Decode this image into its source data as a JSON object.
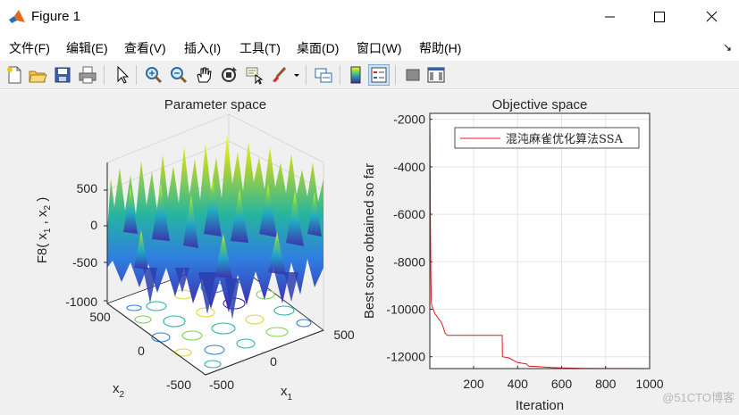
{
  "window": {
    "title": "Figure 1",
    "icon": "matlab-icon",
    "minimize_icon": "minimize-icon",
    "maximize_icon": "maximize-icon",
    "close_icon": "close-icon"
  },
  "menu": {
    "items": [
      "文件(F)",
      "编辑(E)",
      "查看(V)",
      "插入(I)",
      "工具(T)",
      "桌面(D)",
      "窗口(W)",
      "帮助(H)"
    ],
    "arrow": "↘"
  },
  "toolbar": {
    "icons": [
      "new-figure-icon",
      "open-file-icon",
      "save-icon",
      "print-icon",
      "pointer-icon",
      "zoom-in-icon",
      "zoom-out-icon",
      "pan-icon",
      "rotate-3d-icon",
      "data-cursor-icon",
      "brush-icon",
      "link-plot-icon",
      "colorbar-icon",
      "legend-icon",
      "hide-plot-tools-icon",
      "show-plot-tools-icon"
    ]
  },
  "left_plot": {
    "title": "Parameter space",
    "zlabel": "F8( x",
    "zlabel_sub1": "1",
    "zlabel_mid": " , x",
    "zlabel_sub2": "2",
    "zlabel_end": " )",
    "z_ticks": [
      "500",
      "0",
      "-500",
      "-1000"
    ],
    "x2_ticks": [
      "500",
      "0",
      "-500"
    ],
    "x1_ticks": [
      "-500",
      "0",
      "500"
    ],
    "x1_label": "x",
    "x1_sub": "1",
    "x2_label": "x",
    "x2_sub": "2"
  },
  "chart_data": {
    "type": "line",
    "title": "Objective space",
    "xlabel": "Iteration",
    "ylabel": "Best score obtained so far",
    "xlim": [
      1,
      1000
    ],
    "ylim": [
      -12500,
      -1750
    ],
    "x_ticks": [
      200,
      400,
      600,
      800,
      1000
    ],
    "y_ticks": [
      -2000,
      -4000,
      -6000,
      -8000,
      -10000,
      -12000
    ],
    "grid": true,
    "legend_position": "top-right",
    "series": [
      {
        "name": "混沌麻雀优化算法SSA",
        "color": "#e8161b",
        "x": [
          1,
          2,
          4,
          6,
          8,
          10,
          14,
          18,
          25,
          30,
          40,
          50,
          60,
          70,
          80,
          100,
          120,
          200,
          330,
          331,
          360,
          400,
          440,
          450,
          500,
          550,
          600,
          700,
          800,
          900,
          1000
        ],
        "y": [
          -1750,
          -2700,
          -6500,
          -8600,
          -9700,
          -9850,
          -9950,
          -10050,
          -10200,
          -10250,
          -10400,
          -10500,
          -10700,
          -11000,
          -11100,
          -11100,
          -11100,
          -11100,
          -11100,
          -12000,
          -12050,
          -12250,
          -12300,
          -12400,
          -12420,
          -12450,
          -12470,
          -12490,
          -12495,
          -12498,
          -12500
        ]
      }
    ]
  },
  "watermark": "@51CTO博客"
}
